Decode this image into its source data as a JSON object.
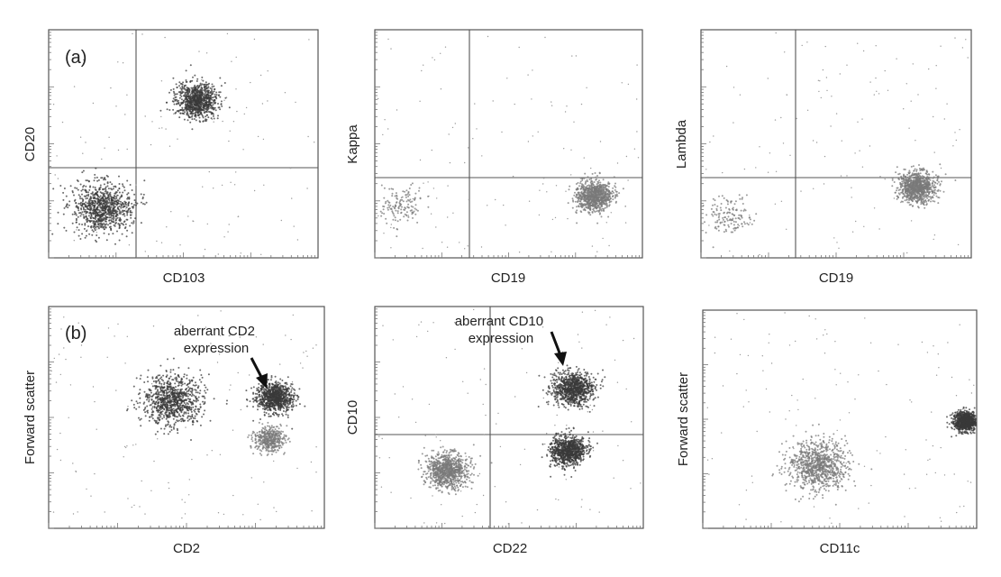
{
  "figure": {
    "row_labels": [
      "(a)",
      "(b)"
    ]
  },
  "chart_data": [
    {
      "type": "scatter",
      "panel": "(a)",
      "xlabel": "CD103",
      "ylabel": "CD20",
      "axis_scale": "log",
      "quadrant_gates": true,
      "populations": [
        {
          "x": 0.55,
          "y": 0.69,
          "spread": 0.35,
          "density": "high",
          "tone": "dark",
          "description_key": "CD20+ CD103+"
        },
        {
          "x": 0.2,
          "y": 0.22,
          "spread": 0.5,
          "density": "high",
          "tone": "dark",
          "description_key": "CD20- CD103-"
        }
      ]
    },
    {
      "type": "scatter",
      "panel": "(a)",
      "xlabel": "CD19",
      "ylabel": "Kappa",
      "axis_scale": "log",
      "quadrant_gates": true,
      "populations": [
        {
          "x": 0.82,
          "y": 0.27,
          "spread": 0.3,
          "density": "high",
          "tone": "gray"
        },
        {
          "x": 0.1,
          "y": 0.24,
          "spread": 0.4,
          "density": "low",
          "tone": "gray"
        }
      ]
    },
    {
      "type": "scatter",
      "panel": "(a)",
      "xlabel": "CD19",
      "ylabel": "Lambda",
      "axis_scale": "log",
      "quadrant_gates": true,
      "populations": [
        {
          "x": 0.8,
          "y": 0.31,
          "spread": 0.3,
          "density": "high",
          "tone": "gray"
        },
        {
          "x": 0.1,
          "y": 0.18,
          "spread": 0.4,
          "density": "low",
          "tone": "gray"
        }
      ]
    },
    {
      "type": "scatter",
      "panel": "(b)",
      "xlabel": "CD2",
      "ylabel": "Forward scatter",
      "axis_scale": "log",
      "quadrant_gates": false,
      "annotation": "aberrant CD2\nexpression",
      "populations": [
        {
          "x": 0.45,
          "y": 0.58,
          "spread": 0.5,
          "density": "high",
          "tone": "dark"
        },
        {
          "x": 0.82,
          "y": 0.59,
          "spread": 0.3,
          "density": "high",
          "tone": "dark"
        },
        {
          "x": 0.8,
          "y": 0.4,
          "spread": 0.25,
          "density": "medium",
          "tone": "gray"
        }
      ]
    },
    {
      "type": "scatter",
      "panel": "(b)",
      "xlabel": "CD22",
      "ylabel": "CD10",
      "axis_scale": "log",
      "quadrant_gates": true,
      "annotation": "aberrant CD10\nexpression",
      "populations": [
        {
          "x": 0.74,
          "y": 0.63,
          "spread": 0.35,
          "density": "high",
          "tone": "dark"
        },
        {
          "x": 0.72,
          "y": 0.35,
          "spread": 0.3,
          "density": "high",
          "tone": "dark"
        },
        {
          "x": 0.27,
          "y": 0.26,
          "spread": 0.35,
          "density": "high",
          "tone": "gray"
        }
      ]
    },
    {
      "type": "scatter",
      "panel": "(b)",
      "xlabel": "CD11c",
      "ylabel": "Forward scatter",
      "axis_scale": "log",
      "quadrant_gates": false,
      "populations": [
        {
          "x": 0.42,
          "y": 0.29,
          "spread": 0.5,
          "density": "high",
          "tone": "gray"
        },
        {
          "x": 0.96,
          "y": 0.49,
          "spread": 0.2,
          "density": "high",
          "tone": "dark"
        }
      ]
    }
  ],
  "colors": {
    "dark_dot": "#3a3a3a",
    "gray_dot": "#7a7a7a",
    "frame": "#555555"
  }
}
